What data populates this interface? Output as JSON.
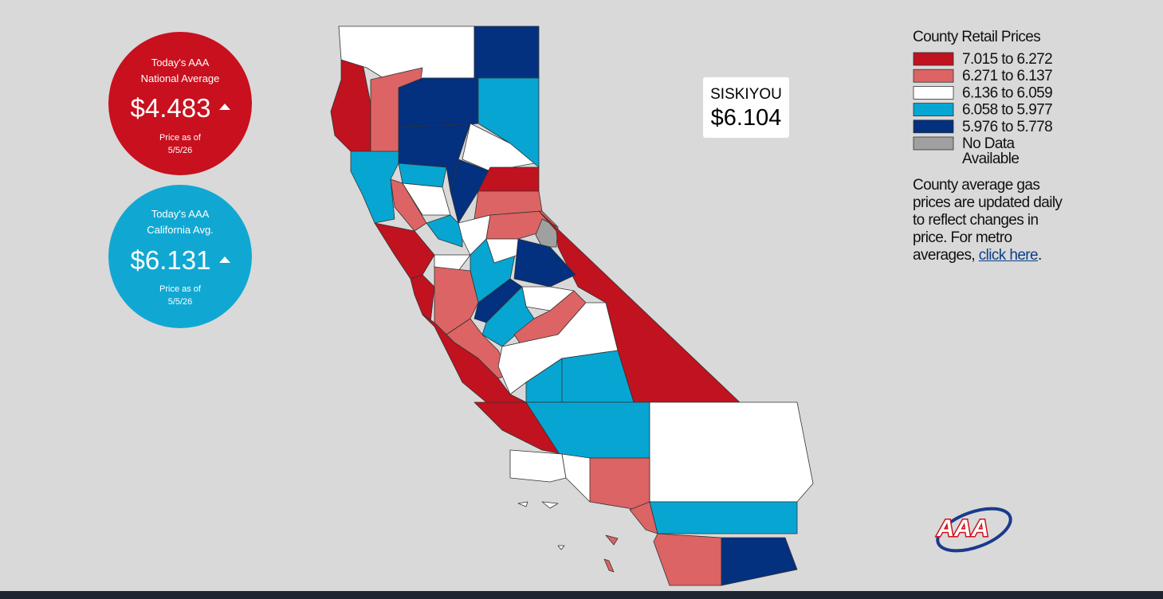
{
  "national": {
    "title_lines": [
      "Today's AAA",
      "National Average"
    ],
    "price": "$4.483",
    "date_label": "Price as of",
    "date": "5/5/26",
    "color": "#c8101e"
  },
  "california": {
    "title_lines": [
      "Today's AAA",
      "California Avg."
    ],
    "price": "$6.131",
    "date_label": "Price as of",
    "date": "5/5/26",
    "color": "#10a8d2"
  },
  "tooltip": {
    "county": "SISKIYOU",
    "price": "$6.104"
  },
  "legend": {
    "title": "County Retail Prices",
    "entries": [
      {
        "label": "7.015 to 6.272",
        "color": "#c0121f"
      },
      {
        "label": "6.271 to 6.137",
        "color": "#dc6464"
      },
      {
        "label": "6.136 to 6.059",
        "color": "#ffffff"
      },
      {
        "label": "6.058 to 5.977",
        "color": "#07a6d2"
      },
      {
        "label": "5.976 to 5.778",
        "color": "#03307f"
      },
      {
        "label": "No Data Available",
        "color": "#a0a0a0"
      }
    ]
  },
  "note": {
    "text": "County average gas prices are updated daily to reflect changes in price. For metro averages,",
    "link": "click here",
    "end": "."
  },
  "logo": {
    "text": "AAA"
  }
}
